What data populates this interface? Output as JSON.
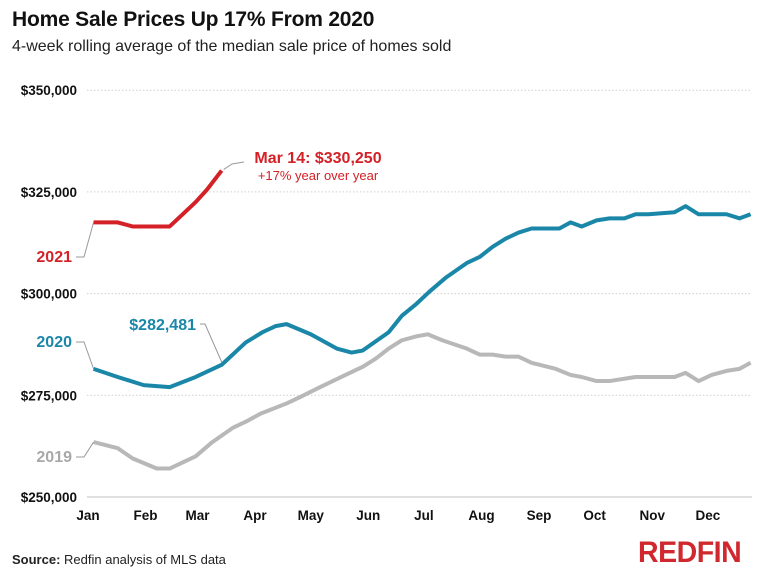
{
  "chart_data": {
    "type": "line",
    "title": "Home Sale Prices Up 17% From 2020",
    "subtitle": "4-week rolling average of the median sale price of homes sold",
    "xlabel": "",
    "ylabel": "",
    "ylim": [
      250000,
      350000
    ],
    "yticks": [
      250000,
      275000,
      300000,
      325000,
      350000
    ],
    "ytick_labels": [
      "$250,000",
      "$275,000",
      "$300,000",
      "$325,000",
      "$350,000"
    ],
    "xtick_labels": [
      "Jan",
      "Feb",
      "Mar",
      "Apr",
      "May",
      "Jun",
      "Jul",
      "Aug",
      "Sep",
      "Oct",
      "Nov",
      "Dec"
    ],
    "grid": "horizontal dotted",
    "legend": "inline labels at left",
    "series": [
      {
        "name": "2019",
        "color": "#b8b8b8",
        "label_color": "#a8a8a8",
        "x": [
          "01-04",
          "01-17",
          "01-25",
          "02-07",
          "02-14",
          "02-28",
          "03-09",
          "03-20",
          "03-27",
          "04-04",
          "04-18",
          "04-25",
          "05-06",
          "05-22",
          "05-29",
          "06-05",
          "06-12",
          "06-19",
          "06-27",
          "07-03",
          "07-11",
          "07-24",
          "07-31",
          "08-07",
          "08-14",
          "08-21",
          "08-28",
          "09-10",
          "09-18",
          "09-24",
          "10-02",
          "10-09",
          "10-23",
          "11-13",
          "11-19",
          "11-26",
          "12-03",
          "12-11",
          "12-18",
          "12-24"
        ],
        "values": [
          263500,
          262000,
          259500,
          257000,
          257000,
          260000,
          263500,
          267000,
          268500,
          270500,
          273000,
          274500,
          277000,
          280500,
          282000,
          284000,
          286500,
          288500,
          289500,
          290000,
          288500,
          286500,
          285000,
          285000,
          284500,
          284500,
          283000,
          281500,
          280000,
          279500,
          278500,
          278500,
          279500,
          279500,
          280500,
          278500,
          280000,
          281000,
          281500,
          283000
        ]
      },
      {
        "name": "2020",
        "color": "#1a87a8",
        "label_color": "#1a87a8",
        "x": [
          "01-04",
          "01-17",
          "01-31",
          "02-14",
          "02-28",
          "03-14",
          "03-27",
          "04-05",
          "04-12",
          "04-18",
          "05-01",
          "05-15",
          "05-23",
          "05-29",
          "06-12",
          "06-19",
          "06-27",
          "07-04",
          "07-13",
          "07-24",
          "07-31",
          "08-07",
          "08-14",
          "08-21",
          "08-28",
          "09-12",
          "09-18",
          "09-24",
          "10-02",
          "10-09",
          "10-17",
          "10-23",
          "10-30",
          "11-13",
          "11-19",
          "11-26",
          "12-11",
          "12-18",
          "12-24"
        ],
        "values": [
          281500,
          279500,
          277500,
          277000,
          279500,
          282481,
          288000,
          290500,
          292000,
          292500,
          290000,
          286500,
          285500,
          286000,
          290500,
          294500,
          297500,
          300500,
          304000,
          307500,
          309000,
          311500,
          313500,
          315000,
          316000,
          316000,
          317500,
          316500,
          318000,
          318500,
          318500,
          319500,
          319500,
          320000,
          321500,
          319500,
          319500,
          318500,
          319500
        ]
      },
      {
        "name": "2021",
        "color": "#d42027",
        "label_color": "#d42027",
        "x": [
          "01-04",
          "01-17",
          "01-25",
          "02-07",
          "02-14",
          "02-21",
          "02-28",
          "03-06",
          "03-14"
        ],
        "values": [
          317500,
          317500,
          316500,
          316500,
          316500,
          319500,
          322500,
          325500,
          330250
        ]
      }
    ],
    "annotations": {
      "value_2020": "$282,481",
      "mar14_line1": "Mar 14: $330,250",
      "mar14_line2": "+17% year over year"
    }
  },
  "footer": {
    "source_label": "Source:",
    "source_text": "Redfin analysis of MLS data",
    "logo": "REDFIN"
  }
}
